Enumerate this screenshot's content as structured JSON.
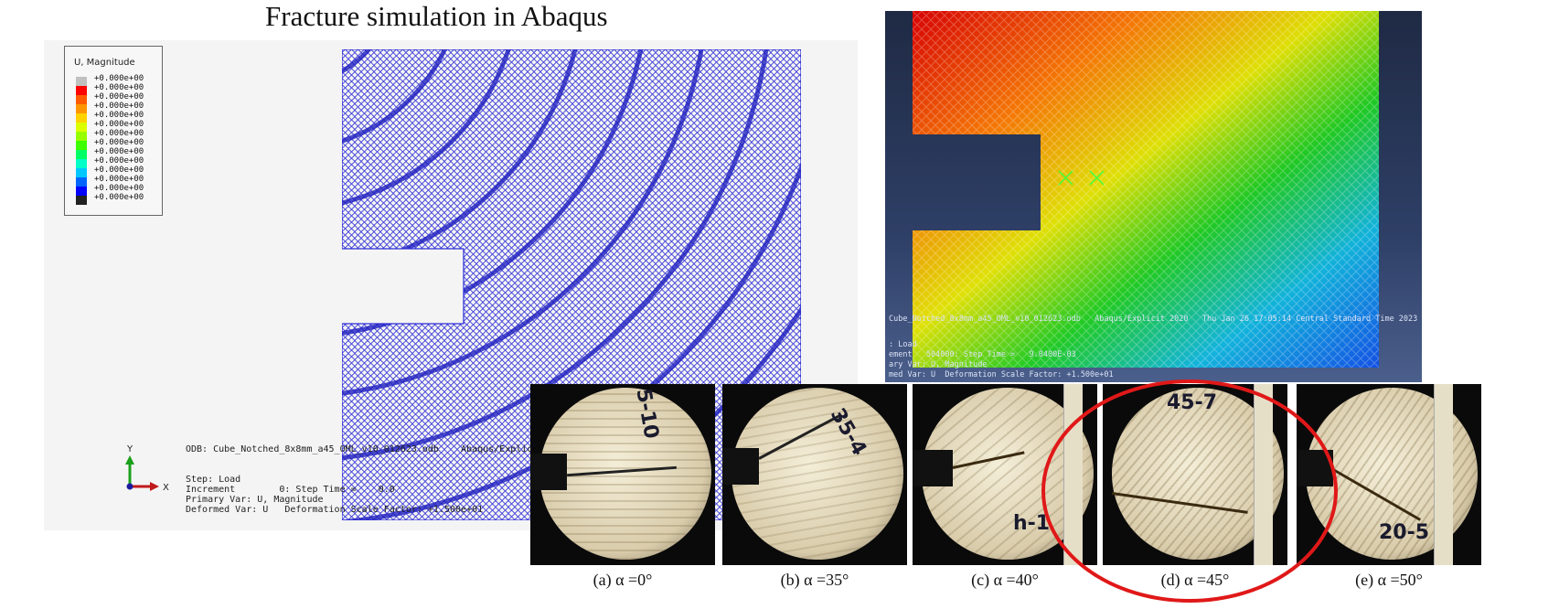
{
  "title": "Fracture simulation in Abaqus",
  "legend": {
    "title": "U, Magnitude",
    "values": [
      "+0.000e+00",
      "+0.000e+00",
      "+0.000e+00",
      "+0.000e+00",
      "+0.000e+00",
      "+0.000e+00",
      "+0.000e+00",
      "+0.000e+00",
      "+0.000e+00",
      "+0.000e+00",
      "+0.000e+00",
      "+0.000e+00",
      "+0.000e+00",
      "+0.000e+00"
    ],
    "colors": [
      "#c0c0c0",
      "#ff0000",
      "#ff5a00",
      "#ff9600",
      "#ffd200",
      "#dcff00",
      "#96ff00",
      "#3cff00",
      "#00ff64",
      "#00ffc8",
      "#00c8ff",
      "#0064ff",
      "#0000ff",
      "#222222"
    ]
  },
  "triad": {
    "y": "Y",
    "x": "X"
  },
  "odb_info": {
    "line1": "ODB: Cube_Notched_8x8mm_a45_OML_v10_012623.odb    Abaqus/Explicit",
    "line2": "Step: Load",
    "line3": "Increment        0: Step Time =    0.0",
    "line4": "Primary Var: U, Magnitude",
    "line5": "Deformed Var: U   Deformation Scale Factor: +1.500e+01"
  },
  "right_info": {
    "line1": "Cube_Notched_8x8mm_a45_OML_v10_012623.odb   Abaqus/Explicit 2020   Thu Jan 26 17:05:14 Central Standard Time 2023",
    "line2": ": Load",
    "line3": "ement   504000: Step Time =   9.0400E-03",
    "line4": "ary Var: U, Magnitude",
    "line5": "med Var: U  Deformation Scale Factor: +1.500e+01"
  },
  "photos": [
    {
      "caption": "(a) α =0°",
      "label": "5-10"
    },
    {
      "caption": "(b) α =35°",
      "label": "35-4"
    },
    {
      "caption": "(c) α =40°",
      "label": "h-1"
    },
    {
      "caption": "(d) α =45°",
      "label": "45-7"
    },
    {
      "caption": "(e) α =50°",
      "label": "20-5"
    }
  ],
  "colors": {
    "mesh": "#2a2ad6",
    "highlight": "#e01818"
  }
}
